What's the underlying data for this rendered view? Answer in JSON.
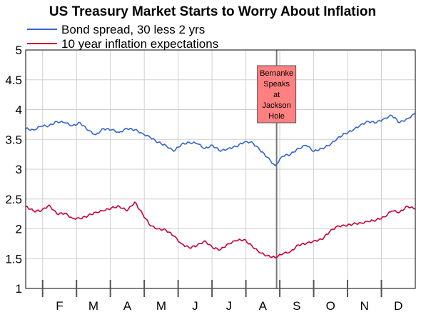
{
  "chart_data": {
    "type": "line",
    "title": "US Treasury Market Starts to Worry About Inflation",
    "legend_position": "top-left",
    "grid": true,
    "ylim": [
      1,
      5
    ],
    "yticks": [
      "1",
      "1.5",
      "2",
      "2.5",
      "3",
      "3.5",
      "4",
      "4.5",
      "5"
    ],
    "month_labels": [
      "F",
      "M",
      "A",
      "M",
      "J",
      "J",
      "A",
      "S",
      "O",
      "N",
      "D"
    ],
    "xlim": [
      0,
      250
    ],
    "series": [
      {
        "name": "Bond spread, 30 less 2 yrs",
        "color": "#3366cc",
        "x": [
          0,
          5,
          10,
          15,
          20,
          25,
          30,
          35,
          40,
          45,
          50,
          55,
          60,
          65,
          70,
          75,
          80,
          85,
          90,
          95,
          100,
          105,
          110,
          115,
          120,
          125,
          130,
          135,
          140,
          145,
          150,
          155,
          160,
          165,
          170,
          175,
          180,
          185,
          190,
          195,
          200,
          205,
          210,
          215,
          220,
          225,
          230,
          235,
          240,
          245,
          250
        ],
        "values": [
          3.68,
          3.66,
          3.72,
          3.73,
          3.8,
          3.78,
          3.73,
          3.78,
          3.65,
          3.58,
          3.68,
          3.66,
          3.62,
          3.68,
          3.66,
          3.6,
          3.53,
          3.45,
          3.4,
          3.3,
          3.42,
          3.45,
          3.43,
          3.35,
          3.4,
          3.3,
          3.35,
          3.38,
          3.45,
          3.46,
          3.33,
          3.2,
          3.06,
          3.22,
          3.25,
          3.35,
          3.4,
          3.3,
          3.35,
          3.4,
          3.52,
          3.6,
          3.65,
          3.75,
          3.8,
          3.78,
          3.85,
          3.9,
          3.78,
          3.85,
          3.93
        ]
      },
      {
        "name": "10 year inflation expectations",
        "color": "#cc0033",
        "x": [
          0,
          5,
          10,
          15,
          20,
          25,
          30,
          35,
          40,
          45,
          50,
          55,
          60,
          65,
          70,
          75,
          80,
          85,
          90,
          95,
          100,
          105,
          110,
          115,
          120,
          125,
          130,
          135,
          140,
          145,
          150,
          155,
          160,
          165,
          170,
          175,
          180,
          185,
          190,
          195,
          200,
          205,
          210,
          215,
          220,
          225,
          230,
          235,
          240,
          245,
          250
        ],
        "values": [
          2.38,
          2.3,
          2.3,
          2.4,
          2.25,
          2.26,
          2.18,
          2.17,
          2.22,
          2.28,
          2.3,
          2.35,
          2.38,
          2.3,
          2.45,
          2.25,
          2.05,
          2.0,
          1.98,
          1.88,
          1.75,
          1.68,
          1.72,
          1.8,
          1.68,
          1.65,
          1.75,
          1.8,
          1.82,
          1.72,
          1.6,
          1.55,
          1.52,
          1.58,
          1.62,
          1.73,
          1.75,
          1.8,
          1.82,
          1.95,
          2.05,
          2.05,
          2.08,
          2.1,
          2.12,
          2.15,
          2.2,
          2.3,
          2.28,
          2.38,
          2.33
        ]
      }
    ],
    "annotation": {
      "x": 161,
      "label": "Bernanke Speaks at Jackson Hole",
      "lines": [
        "Bernanke",
        "Speaks",
        "at",
        "Jackson",
        "Hole"
      ],
      "box_color": "#ff8080"
    }
  }
}
